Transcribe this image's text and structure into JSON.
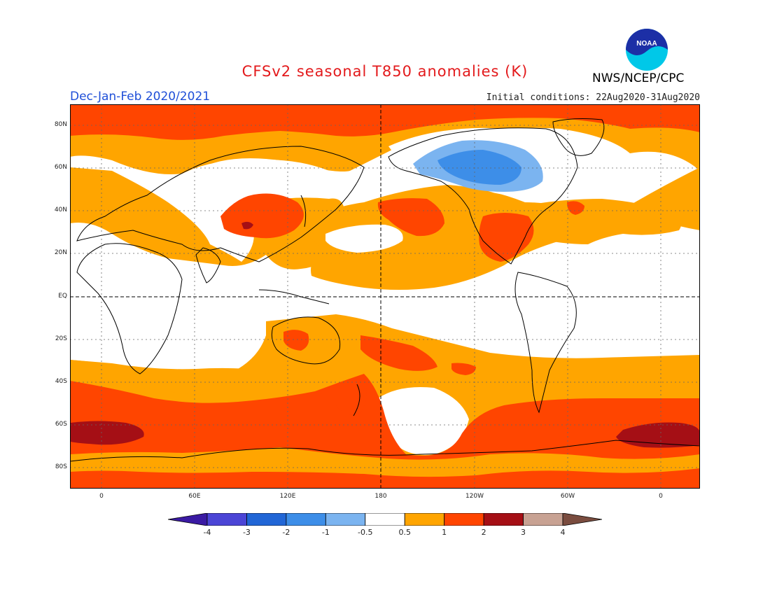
{
  "header": {
    "title": "CFSv2 seasonal T850 anomalies (K)",
    "season": "Dec-Jan-Feb 2020/2021",
    "initial_conditions": "Initial conditions: 22Aug2020-31Aug2020",
    "agency": "NWS/NCEP/CPC",
    "logo_text": "NOAA"
  },
  "map": {
    "lat_labels": [
      "80N",
      "60N",
      "40N",
      "20N",
      "EQ",
      "20S",
      "40S",
      "60S",
      "80S"
    ],
    "lon_labels": [
      "0",
      "60E",
      "120E",
      "180",
      "120W",
      "60W",
      "0"
    ]
  },
  "legend": {
    "labels": [
      "-4",
      "-3",
      "-2",
      "-1",
      "-0.5",
      "0.5",
      "1",
      "2",
      "3",
      "4"
    ],
    "colors": [
      "#3a1aa3",
      "#4b45d6",
      "#2166d6",
      "#3d8ee8",
      "#7bb4f0",
      "#ffffff",
      "#ffa500",
      "#ff4500",
      "#a50f15",
      "#c8a293",
      "#7a4c3f"
    ]
  }
}
